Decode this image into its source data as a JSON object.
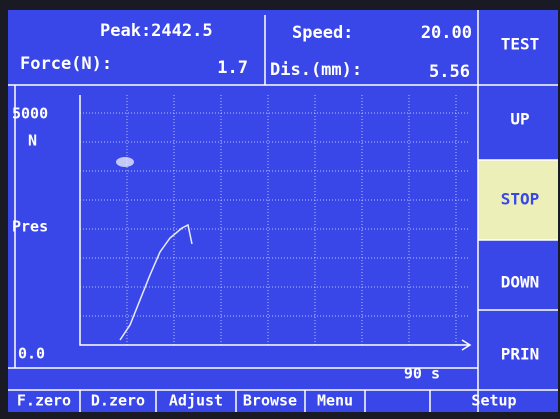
{
  "header": {
    "peak": "Peak:2442.5",
    "speed_label": "Speed:",
    "speed_value": "20.00",
    "force_label": "Force(N):",
    "force_value": "1.7",
    "dis_label": "Dis.(mm):",
    "dis_value": "5.56"
  },
  "graph": {
    "y_max": "5000",
    "y_unit": "N",
    "y_label": "Pres",
    "origin": "0.0",
    "x_max": "90 s"
  },
  "side_buttons": [
    "TEST",
    "UP",
    "STOP",
    "DOWN",
    "PRIN"
  ],
  "bottom_buttons": [
    "F.zero",
    "D.zero",
    "Adjust",
    "Browse",
    "Menu",
    "Setup"
  ]
}
